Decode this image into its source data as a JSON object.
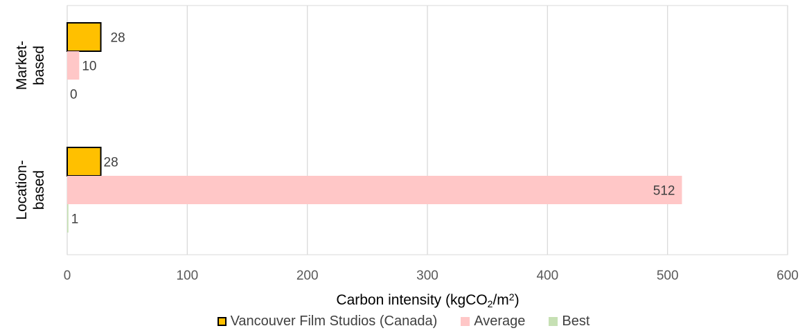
{
  "chart_data": {
    "type": "bar",
    "orientation": "horizontal",
    "categories": [
      "Market-based",
      "Location-based"
    ],
    "category_lines": [
      [
        "Market-",
        "based"
      ],
      [
        "Location-",
        "based"
      ]
    ],
    "series": [
      {
        "name": "Vancouver Film Studios (Canada)",
        "values": [
          28,
          28
        ],
        "color": "#FFC000",
        "border": "#000000"
      },
      {
        "name": "Average",
        "values": [
          10,
          512
        ],
        "color": "#FFC7C7",
        "border": null
      },
      {
        "name": "Best",
        "values": [
          0,
          1
        ],
        "color": "#C6E0B4",
        "border": null
      }
    ],
    "data_labels": [
      [
        "28",
        "28"
      ],
      [
        "10",
        "512"
      ],
      [
        "0",
        "1"
      ]
    ],
    "xlim": [
      0,
      600
    ],
    "xticks": [
      "0",
      "100",
      "200",
      "300",
      "400",
      "500",
      "600"
    ],
    "xlabel_parts": {
      "pre": "Carbon intensity (kgCO",
      "sub": "2",
      "mid": "/m",
      "sup": "2",
      "post": ")"
    },
    "grid": true,
    "legend_position": "bottom"
  }
}
